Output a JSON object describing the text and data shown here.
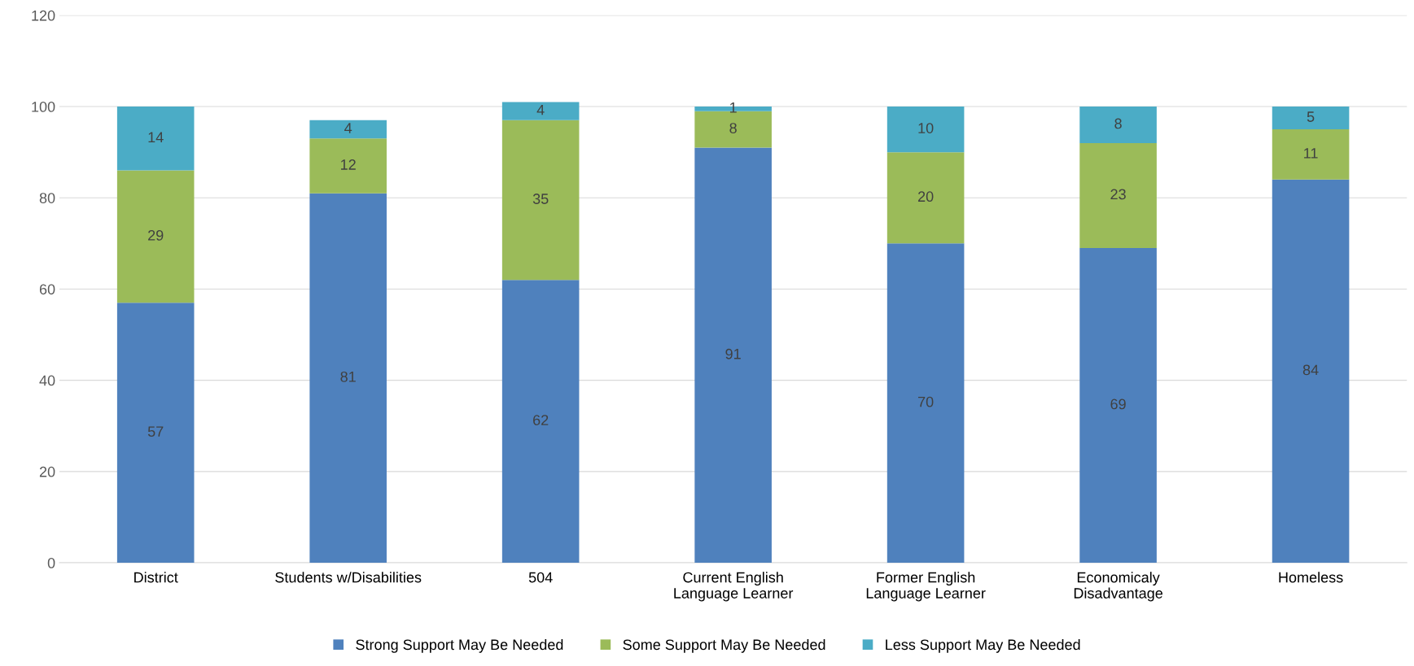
{
  "chart_data": {
    "type": "bar",
    "stacked": true,
    "categories": [
      "District",
      "Students w/Disabilities",
      "504",
      "Current English\nLanguage Learner",
      "Former English\nLanguage Learner",
      "Economicaly\nDisadvantage",
      "Homeless"
    ],
    "series": [
      {
        "name": "Strong Support May Be Needed",
        "color": "#4f81bd",
        "values": [
          57,
          81,
          62,
          91,
          70,
          69,
          84
        ]
      },
      {
        "name": "Some Support May Be Needed",
        "color": "#9bbb59",
        "values": [
          29,
          12,
          35,
          8,
          20,
          23,
          11
        ]
      },
      {
        "name": "Less Support May Be Needed",
        "color": "#4bacc6",
        "values": [
          14,
          4,
          4,
          1,
          10,
          8,
          5
        ]
      }
    ],
    "ylim": [
      0,
      120
    ],
    "yticks": [
      0,
      20,
      40,
      60,
      80,
      100,
      120
    ],
    "grid": "y",
    "legend": "bottom",
    "data_labels": true
  }
}
